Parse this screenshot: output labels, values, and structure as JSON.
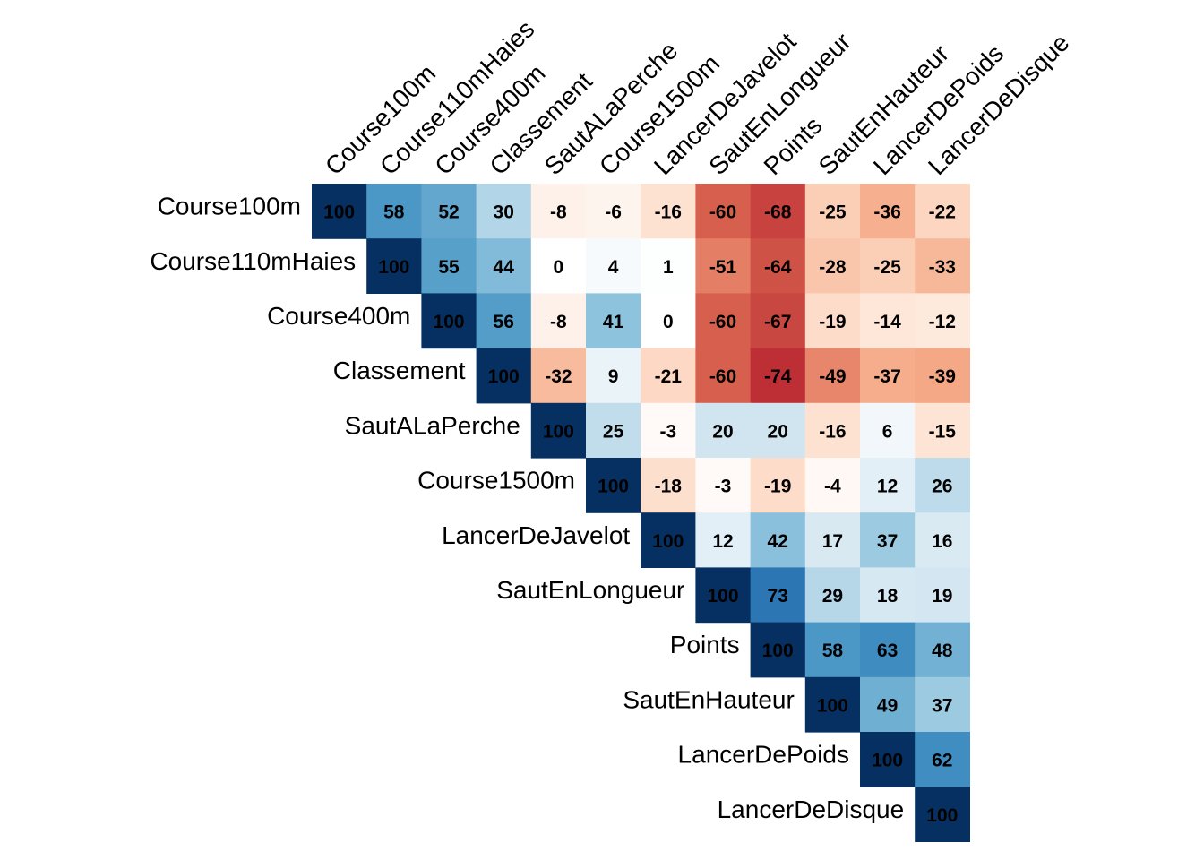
{
  "chart_data": {
    "type": "heatmap",
    "title": "",
    "xlabel": "",
    "ylabel": "",
    "variables": [
      "Course100m",
      "Course110mHaies",
      "Course400m",
      "Classement",
      "SautALaPerche",
      "Course1500m",
      "LancerDeJavelot",
      "SautEnLongueur",
      "Points",
      "SautEnHauteur",
      "LancerDePoids",
      "LancerDeDisque"
    ],
    "matrix_display": "upper",
    "scale": {
      "min": -100,
      "max": 100
    },
    "color_scale": [
      "#67001f",
      "#b2182b",
      "#d6604d",
      "#f4a582",
      "#fddbc7",
      "#ffffff",
      "#d1e5f0",
      "#92c5de",
      "#4393c3",
      "#2166ac",
      "#053061"
    ],
    "values": [
      [
        100,
        58,
        52,
        30,
        -8,
        -6,
        -16,
        -60,
        -68,
        -25,
        -36,
        -22
      ],
      [
        58,
        100,
        55,
        44,
        0,
        4,
        1,
        -51,
        -64,
        -28,
        -25,
        -33
      ],
      [
        52,
        55,
        100,
        56,
        -8,
        41,
        0,
        -60,
        -67,
        -19,
        -14,
        -12
      ],
      [
        30,
        44,
        56,
        100,
        -32,
        9,
        -21,
        -60,
        -74,
        -49,
        -37,
        -39
      ],
      [
        -8,
        0,
        -8,
        -32,
        100,
        25,
        -3,
        20,
        20,
        -16,
        6,
        -15
      ],
      [
        -6,
        4,
        41,
        9,
        25,
        100,
        -18,
        -3,
        -19,
        -4,
        12,
        26
      ],
      [
        -16,
        1,
        0,
        -21,
        -3,
        -18,
        100,
        12,
        42,
        17,
        37,
        16
      ],
      [
        -60,
        -51,
        -60,
        -60,
        20,
        -3,
        12,
        100,
        73,
        29,
        18,
        19
      ],
      [
        -68,
        -64,
        -67,
        -74,
        20,
        -19,
        42,
        73,
        100,
        58,
        63,
        48
      ],
      [
        -25,
        -28,
        -19,
        -49,
        -16,
        -4,
        17,
        29,
        58,
        100,
        49,
        37
      ],
      [
        -36,
        -25,
        -14,
        -37,
        6,
        12,
        37,
        18,
        63,
        49,
        100,
        62
      ],
      [
        -22,
        -33,
        -12,
        -39,
        -15,
        26,
        16,
        19,
        48,
        37,
        62,
        100
      ]
    ]
  }
}
